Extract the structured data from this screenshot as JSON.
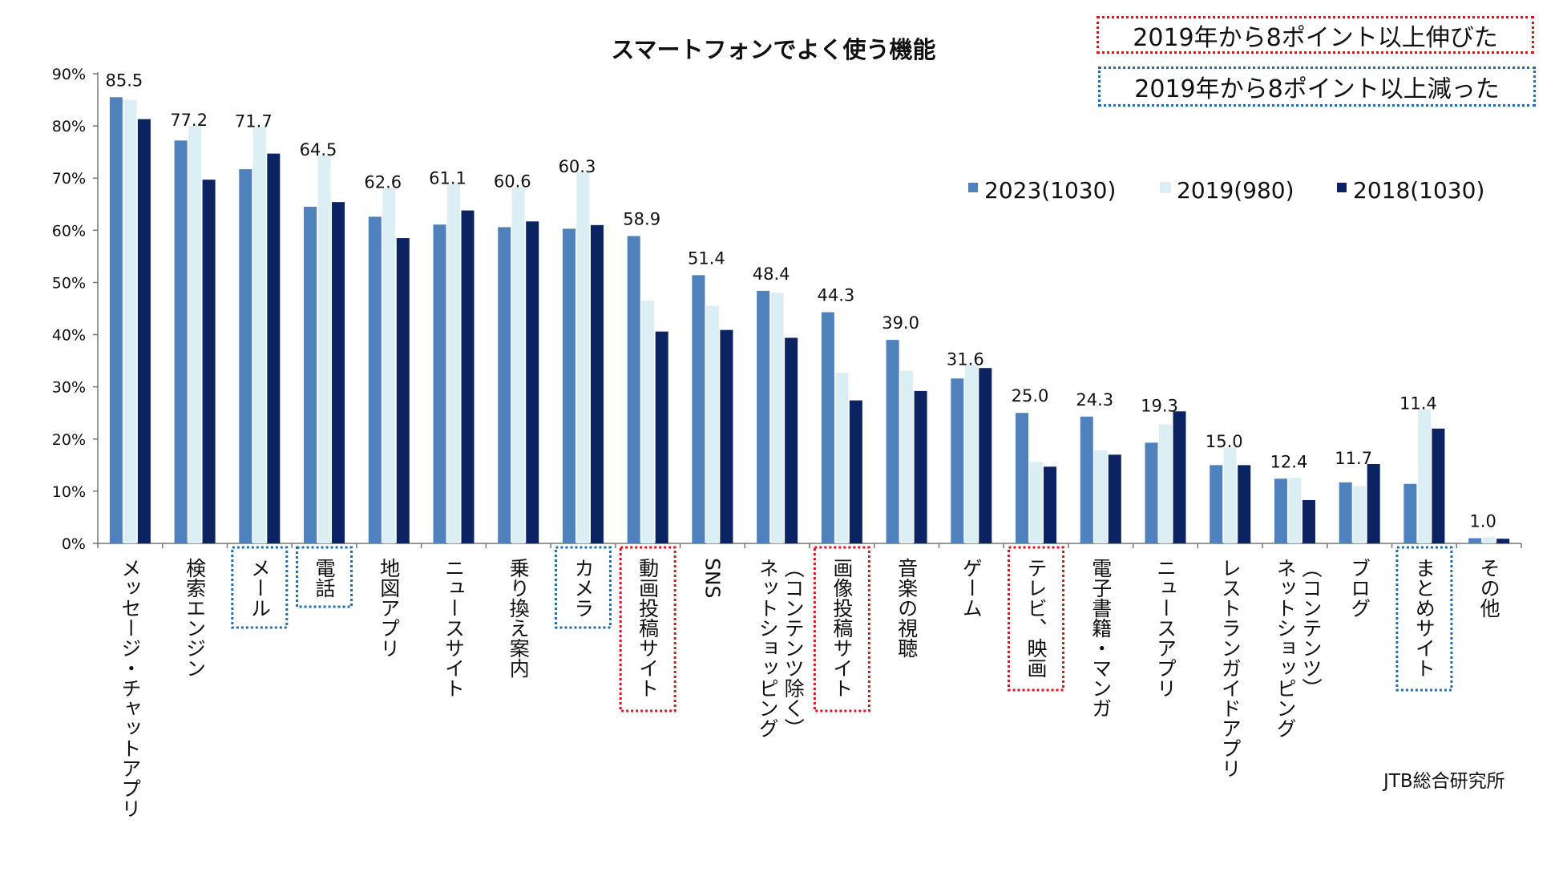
{
  "chart_data": {
    "type": "bar",
    "title": "スマートフォンでよく使う機能",
    "xlabel": "",
    "ylabel": "",
    "ylim": [
      0,
      90
    ],
    "yticks": [
      "0%",
      "10%",
      "20%",
      "30%",
      "40%",
      "50%",
      "60%",
      "70%",
      "80%",
      "90%"
    ],
    "categories": [
      "メッセージ・チャットアプリ",
      "検索エンジン",
      "メール",
      "電話",
      "地図アプリ",
      "ニュースサイト",
      "乗り換え案内",
      "カメラ",
      "動画投稿サイト",
      "SNS",
      "ネットショッピング（コンテンツ除く）",
      "画像投稿サイト",
      "音楽の視聴",
      "ゲーム",
      "テレビ、映画",
      "電子書籍・マンガ",
      "ニュースアプリ",
      "レストランガイドアプリ",
      "ネットショッピング（コンテンツ）",
      "ブログ",
      "まとめサイト",
      "その他"
    ],
    "series": [
      {
        "name": "2023(1030)",
        "color": "#4f81bd",
        "values": [
          85.5,
          77.2,
          71.7,
          64.5,
          62.6,
          61.1,
          60.6,
          60.3,
          58.9,
          51.4,
          48.4,
          44.3,
          39.0,
          31.6,
          25.0,
          24.3,
          19.3,
          15.0,
          12.4,
          11.7,
          11.4,
          1.0
        ]
      },
      {
        "name": "2019(980)",
        "color": "#dbeef4",
        "values": [
          85.0,
          80.0,
          79.8,
          74.3,
          68.1,
          68.9,
          68.3,
          71.1,
          46.5,
          45.5,
          48.0,
          32.7,
          33.1,
          34.2,
          15.6,
          17.8,
          22.8,
          18.4,
          12.6,
          11.0,
          25.7,
          1.2
        ]
      },
      {
        "name": "2018(1030)",
        "color": "#0b2461",
        "values": [
          81.3,
          69.7,
          74.7,
          65.4,
          58.5,
          63.8,
          61.7,
          61.0,
          40.6,
          40.9,
          39.4,
          27.4,
          29.2,
          33.6,
          14.7,
          17.0,
          25.3,
          15.0,
          8.3,
          15.2,
          22.0,
          0.9
        ]
      }
    ],
    "data_labels": [
      "85.5",
      "77.2",
      "71.7",
      "64.5",
      "62.6",
      "61.1",
      "60.6",
      "60.3",
      "58.9",
      "51.4",
      "48.4",
      "44.3",
      "39.0",
      "31.6",
      "25.0",
      "24.3",
      "19.3",
      "15.0",
      "12.4",
      "11.7",
      "11.4",
      "1.0"
    ],
    "highlight_up_indices": [
      8,
      11,
      14
    ],
    "highlight_down_indices": [
      2,
      3,
      7,
      20
    ],
    "highlight_up_label": "2019年から8ポイント以上伸びた",
    "highlight_down_label": "2019年から8ポイント以上減った",
    "highlight_up_color": "#e0101c",
    "highlight_down_color": "#1f6fb0",
    "legend_position": "top-right"
  },
  "source": "JTB総合研究所"
}
